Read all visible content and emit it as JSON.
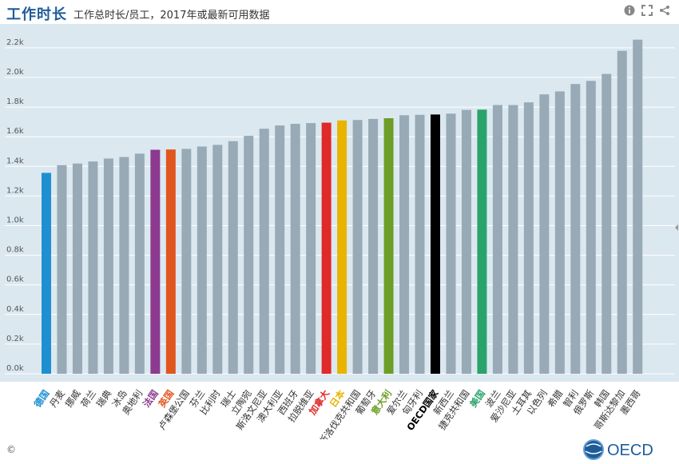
{
  "header": {
    "title": "工作时长",
    "subtitle": "工作总时长/员工，2017年或最新可用数据",
    "info_icon": "info-icon",
    "expand_icon": "expand-icon",
    "share_icon": "share-icon"
  },
  "footer": {
    "copyright": "©",
    "logo_text": "OECD"
  },
  "colors": {
    "plot_bg": "#dbe8f0",
    "default_bar": "#98aab6",
    "germany": "#1f8fd1",
    "france": "#8b3a8f",
    "uk": "#e0561f",
    "canada": "#e02a2a",
    "japan": "#e8b400",
    "italy": "#6d9e28",
    "oecd": "#000000",
    "usa": "#2aa36b"
  },
  "chart_data": {
    "type": "bar",
    "title": "工作时长",
    "subtitle": "工作总时长/员工，2017年或最新可用数据",
    "ylim": [
      0,
      2300
    ],
    "yticks": [
      "0.0k",
      "0.2k",
      "0.4k",
      "0.6k",
      "0.8k",
      "1.0k",
      "1.2k",
      "1.4k",
      "1.6k",
      "1.8k",
      "2.0k",
      "2.2k"
    ],
    "grid": true,
    "categories": [
      "德国",
      "丹麦",
      "挪威",
      "荷兰",
      "瑞典",
      "冰岛",
      "奥地利",
      "法国",
      "英国",
      "卢森堡公国",
      "芬兰",
      "比利时",
      "瑞士",
      "立陶宛",
      "斯洛文尼亚",
      "澳大利亚",
      "西班牙",
      "拉脱维亚",
      "加拿大",
      "日本",
      "斯洛伐克共和国",
      "葡萄牙",
      "意大利",
      "爱尔兰",
      "匈牙利",
      "OECD国家",
      "新西兰",
      "捷克共和国",
      "美国",
      "波兰",
      "爱沙尼亚",
      "土耳其",
      "以色列",
      "希腊",
      "智利",
      "俄罗斯",
      "韩国",
      "哥斯达黎加",
      "墨西哥"
    ],
    "values": [
      1356,
      1408,
      1419,
      1433,
      1453,
      1463,
      1486,
      1512,
      1514,
      1518,
      1534,
      1545,
      1570,
      1606,
      1654,
      1676,
      1687,
      1692,
      1695,
      1710,
      1713,
      1720,
      1725,
      1745,
      1748,
      1750,
      1756,
      1781,
      1783,
      1814,
      1814,
      1832,
      1886,
      1906,
      1956,
      1977,
      2024,
      2180,
      2255
    ],
    "highlight": {
      "德国": "#1f8fd1",
      "法国": "#8b3a8f",
      "英国": "#e0561f",
      "加拿大": "#e02a2a",
      "日本": "#e8b400",
      "意大利": "#6d9e28",
      "OECD国家": "#000000",
      "美国": "#2aa36b"
    }
  }
}
